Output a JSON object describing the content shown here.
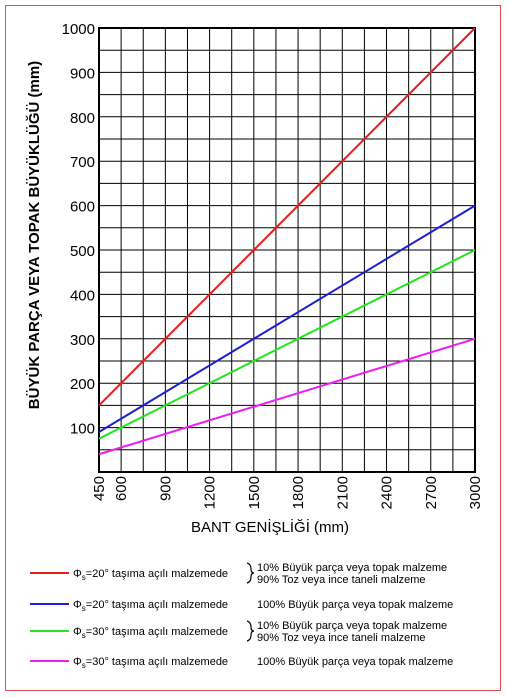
{
  "chart_data": {
    "type": "line",
    "xlabel": "BANT GENİŞLİĞİ (mm)",
    "ylabel": "BÜYÜK PARÇA VEYA TOPAK BÜYÜKLÜĞÜ (mm)",
    "xlim": [
      450,
      3000
    ],
    "ylim": [
      0,
      1000
    ],
    "x_ticks": [
      "450",
      "600",
      "900",
      "1200",
      "1500",
      "1800",
      "2100",
      "2400",
      "2700",
      "3000"
    ],
    "y_ticks": [
      "100",
      "200",
      "300",
      "400",
      "500",
      "600",
      "700",
      "800",
      "900",
      "1000"
    ],
    "grid": true,
    "series": [
      {
        "color": "#e0201e",
        "x": [
          450,
          3000
        ],
        "y": [
          150,
          1000
        ]
      },
      {
        "color": "#1e1ed2",
        "x": [
          450,
          3000
        ],
        "y": [
          90,
          600
        ]
      },
      {
        "color": "#22e61e",
        "x": [
          450,
          3000
        ],
        "y": [
          75,
          500
        ]
      },
      {
        "color": "#ee1eee",
        "x": [
          450,
          3000
        ],
        "y": [
          40,
          300
        ]
      }
    ]
  },
  "legend": [
    {
      "color": "#e0201e",
      "label": "Φs=20° taşıma açılı malzemede",
      "phi": "Φ",
      "sub": "s",
      "angle": "=20° taşıma açılı malzemede",
      "brace": true,
      "desc1": "10% Büyük parça veya topak malzeme",
      "desc2": "90% Toz veya ince taneli malzeme"
    },
    {
      "color": "#1e1ed2",
      "label": "Φs=20° taşıma açılı malzemede",
      "phi": "Φ",
      "sub": "s",
      "angle": "=20° taşıma açılı malzemede",
      "brace": false,
      "desc1": "100% Büyük parça veya topak malzeme",
      "desc2": ""
    },
    {
      "color": "#22e61e",
      "label": "Φs=30° taşıma açılı malzemede",
      "phi": "Φ",
      "sub": "s",
      "angle": "=30° taşıma açılı malzemede",
      "brace": true,
      "desc1": "10% Büyük parça veya topak malzeme",
      "desc2": "90% Toz veya ince taneli malzeme"
    },
    {
      "color": "#ee1eee",
      "label": "Φs=30° taşıma açılı malzemede",
      "phi": "Φ",
      "sub": "s",
      "angle": "=30° taşıma açılı malzemede",
      "brace": false,
      "desc1": "100% Büyük parça veya topak malzeme",
      "desc2": ""
    }
  ]
}
